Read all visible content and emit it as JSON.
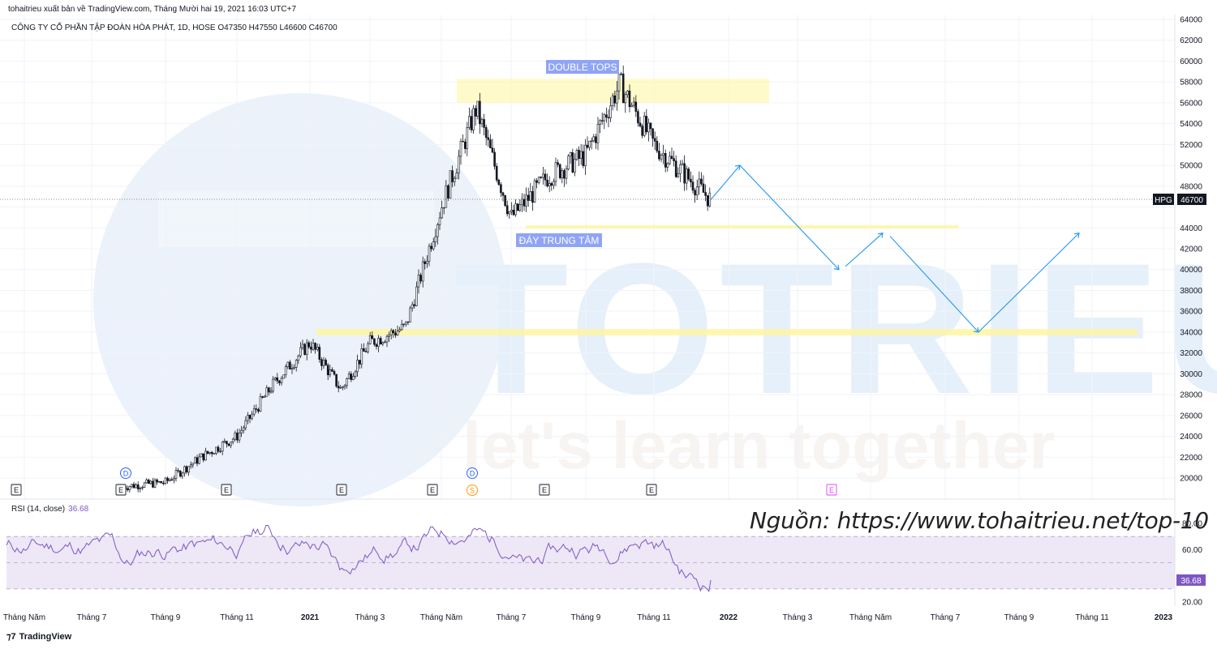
{
  "header": {
    "publisher": "tohaitrieu xuất bản về TradingView.com, Tháng Mười hai 19, 2021 16:03 UTC+7",
    "symbol_line": "CÔNG TY CỔ PHẦN TẬP ĐOÀN HÒA PHÁT, 1D, HOSE  O47350  H47550  L46600  C46700"
  },
  "watermark": {
    "brand": "TOTRIEU",
    "slogan": "let's learn together"
  },
  "annotations": {
    "double_tops": "DOUBLE TOPS",
    "neckline": "ĐÁY TRUNG TÂM"
  },
  "price_tag": {
    "symbol": "HPG",
    "value": "46700"
  },
  "events": [
    {
      "label": "E"
    },
    {
      "label": "E"
    },
    {
      "label": "E"
    },
    {
      "label": "E"
    },
    {
      "label": "E"
    },
    {
      "label": "E"
    },
    {
      "label": "E"
    },
    {
      "label": "E"
    }
  ],
  "dividend_markers": [
    {
      "label": "D"
    },
    {
      "label": "D"
    }
  ],
  "split_markers": [
    {
      "label": "S"
    }
  ],
  "rsi": {
    "label": "RSI (14, close)",
    "value": "36.68"
  },
  "source": "Nguồn: https://www.tohaitrieu.net/top-10",
  "footer": {
    "brand": "TradingView"
  },
  "colors": {
    "candle": "#131722",
    "rsi_line": "#7e57c2",
    "rsi_band": "#ede7f6",
    "projection": "#2196f3",
    "zone": "#fff59d",
    "label_bg": "#90a4f5",
    "watermark": "#d6e6f7"
  },
  "chart_data": [
    {
      "type": "candlestick",
      "title": "CÔNG TY CỔ PHẦN TẬP ĐOÀN HÒA PHÁT, 1D, HOSE",
      "xlabel": "",
      "ylabel": "",
      "ylim": [
        18500,
        64000
      ],
      "y_ticks": [
        20000,
        22000,
        24000,
        26000,
        28000,
        30000,
        32000,
        34000,
        36000,
        38000,
        40000,
        42000,
        44000,
        46000,
        48000,
        50000,
        52000,
        54000,
        56000,
        58000,
        60000,
        62000,
        64000
      ],
      "x_ticks": [
        "Tháng Năm",
        "Tháng 7",
        "Tháng 9",
        "Tháng 11",
        "2021",
        "Tháng 3",
        "Tháng Năm",
        "Tháng 7",
        "Tháng 9",
        "Tháng 11",
        "2022",
        "Tháng 3",
        "Tháng Năm",
        "Tháng 7",
        "Tháng 9",
        "Tháng 11",
        "2023"
      ],
      "grid": true,
      "ohlc_last": {
        "open": 47350,
        "high": 47550,
        "low": 46600,
        "close": 46700
      },
      "close_path": [
        [
          "Tháng 7 2020",
          19200
        ],
        [
          "Tháng 9 2020",
          19600
        ],
        [
          "Tháng 10 2020",
          22000
        ],
        [
          "Tháng 11 2020",
          24000
        ],
        [
          "Tháng 12 2020",
          29000
        ],
        [
          "2021",
          33000
        ],
        [
          "Tháng 2 2021",
          29000
        ],
        [
          "Tháng 3 2021",
          33000
        ],
        [
          "Tháng 4 2021",
          34500
        ],
        [
          "Tháng Năm 2021",
          46000
        ],
        [
          "Tháng 6 2021",
          55000
        ],
        [
          "Tháng 7 2021",
          45000
        ],
        [
          "Tháng 8 2021",
          49000
        ],
        [
          "Tháng 9 2021",
          51000
        ],
        [
          "Tháng 10 2021",
          57500
        ],
        [
          "Tháng 11 2021",
          52000
        ],
        [
          "Tháng 12 2021",
          46700
        ]
      ],
      "zones": [
        {
          "label": "DOUBLE TOPS",
          "y_range": [
            56000,
            58300
          ]
        },
        {
          "label": "ĐÁY TRUNG TÂM",
          "y_range": [
            44000,
            44200
          ]
        },
        {
          "label": "",
          "y_range": [
            33800,
            34200
          ]
        }
      ],
      "projection": [
        [
          "Tháng 12 2021",
          46700
        ],
        [
          "Tháng 1 2022",
          50000
        ],
        [
          "Tháng 4 2022",
          40000
        ],
        [
          "Tháng Năm 2022",
          43500
        ],
        [
          "Tháng 8 2022",
          34000
        ],
        [
          "Tháng 10 2022",
          43500
        ]
      ]
    },
    {
      "type": "line",
      "title": "RSI (14, close)",
      "ylim": [
        15,
        95
      ],
      "y_ticks": [
        20,
        40,
        60,
        80
      ],
      "bands": [
        30,
        50,
        70
      ],
      "last_value": 36.68
    }
  ]
}
